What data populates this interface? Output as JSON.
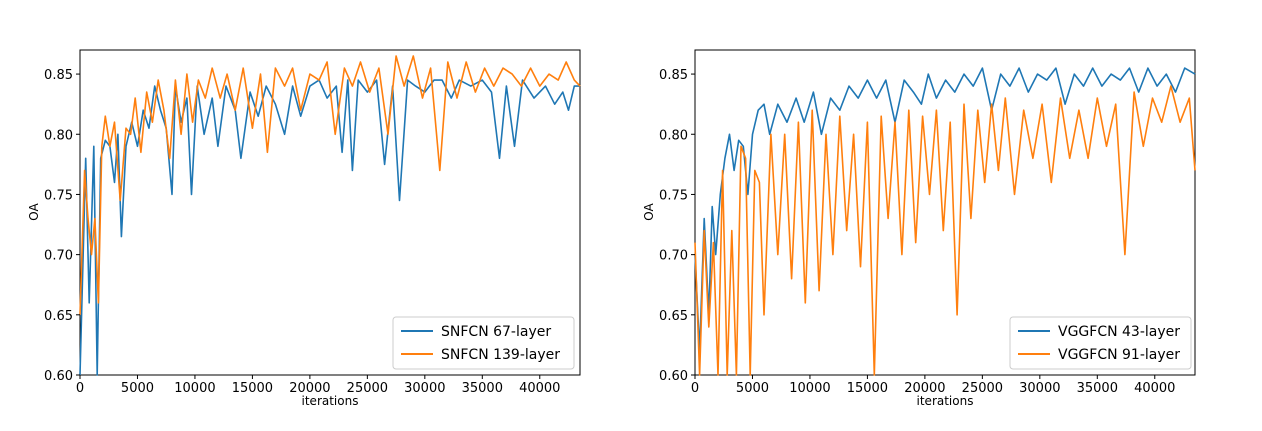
{
  "colors": {
    "blue": "#1f77b4",
    "orange": "#ff7f0e",
    "frame": "#000000",
    "legend_border": "#cccccc"
  },
  "chart_data": [
    {
      "type": "line",
      "title": "",
      "xlabel": "iterations",
      "ylabel": "OA",
      "xlim": [
        0,
        43500
      ],
      "ylim": [
        0.6,
        0.87
      ],
      "grid": false,
      "legend_position": "lower-right",
      "xticks": [
        0,
        5000,
        10000,
        15000,
        20000,
        25000,
        30000,
        35000,
        40000
      ],
      "xtick_labels": [
        "0",
        "5000",
        "10000",
        "15000",
        "20000",
        "25000",
        "30000",
        "35000",
        "40000"
      ],
      "yticks": [
        0.6,
        0.65,
        0.7,
        0.75,
        0.8,
        0.85
      ],
      "ytick_labels": [
        "0.60",
        "0.65",
        "0.70",
        "0.75",
        "0.80",
        "0.85"
      ],
      "series": [
        {
          "name": "SNFCN 67-layer",
          "color": "#1f77b4",
          "x": [
            0,
            500,
            800,
            1200,
            1500,
            1800,
            2200,
            2600,
            3000,
            3300,
            3600,
            4000,
            4500,
            5000,
            5500,
            6000,
            6500,
            7000,
            7500,
            8000,
            8300,
            8800,
            9300,
            9700,
            10200,
            10800,
            11500,
            12000,
            12700,
            13500,
            14000,
            14800,
            15500,
            16200,
            17000,
            17800,
            18500,
            19200,
            20000,
            20800,
            21500,
            22300,
            22800,
            23300,
            23700,
            24200,
            25000,
            25800,
            26500,
            27200,
            27800,
            28500,
            29200,
            30000,
            30800,
            31500,
            32300,
            33000,
            34000,
            35000,
            35800,
            36500,
            37100,
            37800,
            38500,
            39500,
            40500,
            41300,
            42000,
            42500,
            43000,
            43500
          ],
          "y": [
            0.6,
            0.78,
            0.66,
            0.79,
            0.6,
            0.78,
            0.795,
            0.79,
            0.76,
            0.8,
            0.715,
            0.79,
            0.81,
            0.79,
            0.82,
            0.805,
            0.84,
            0.82,
            0.805,
            0.75,
            0.84,
            0.81,
            0.83,
            0.75,
            0.84,
            0.8,
            0.83,
            0.79,
            0.84,
            0.82,
            0.78,
            0.835,
            0.815,
            0.84,
            0.825,
            0.8,
            0.84,
            0.815,
            0.84,
            0.845,
            0.83,
            0.84,
            0.785,
            0.845,
            0.77,
            0.845,
            0.835,
            0.845,
            0.775,
            0.84,
            0.745,
            0.845,
            0.84,
            0.835,
            0.845,
            0.845,
            0.83,
            0.845,
            0.84,
            0.845,
            0.835,
            0.78,
            0.84,
            0.79,
            0.845,
            0.83,
            0.84,
            0.825,
            0.835,
            0.82,
            0.84,
            0.84
          ]
        },
        {
          "name": "SNFCN 139-layer",
          "color": "#ff7f0e",
          "x": [
            0,
            400,
            700,
            1000,
            1300,
            1600,
            1900,
            2200,
            2600,
            3000,
            3500,
            4000,
            4400,
            4800,
            5300,
            5800,
            6300,
            6800,
            7300,
            7800,
            8300,
            8800,
            9300,
            9800,
            10300,
            10900,
            11500,
            12200,
            12800,
            13500,
            14200,
            15000,
            15700,
            16300,
            17000,
            17800,
            18500,
            19200,
            20000,
            20800,
            21500,
            22200,
            23000,
            23700,
            24400,
            25200,
            26000,
            26800,
            27500,
            28200,
            29000,
            29800,
            30500,
            31300,
            32000,
            32800,
            33600,
            34400,
            35200,
            36000,
            36800,
            37600,
            38400,
            39200,
            40000,
            40800,
            41600,
            42300,
            43000,
            43500
          ],
          "y": [
            0.65,
            0.77,
            0.73,
            0.7,
            0.73,
            0.66,
            0.79,
            0.815,
            0.79,
            0.81,
            0.745,
            0.805,
            0.8,
            0.83,
            0.785,
            0.835,
            0.81,
            0.845,
            0.82,
            0.78,
            0.845,
            0.8,
            0.85,
            0.81,
            0.845,
            0.83,
            0.855,
            0.83,
            0.85,
            0.82,
            0.855,
            0.805,
            0.85,
            0.785,
            0.855,
            0.84,
            0.855,
            0.82,
            0.85,
            0.845,
            0.86,
            0.8,
            0.855,
            0.84,
            0.86,
            0.835,
            0.855,
            0.8,
            0.865,
            0.84,
            0.865,
            0.83,
            0.855,
            0.77,
            0.86,
            0.83,
            0.86,
            0.835,
            0.855,
            0.84,
            0.855,
            0.85,
            0.84,
            0.855,
            0.84,
            0.85,
            0.845,
            0.86,
            0.845,
            0.84
          ]
        }
      ]
    },
    {
      "type": "line",
      "title": "",
      "xlabel": "iterations",
      "ylabel": "OA",
      "xlim": [
        0,
        43500
      ],
      "ylim": [
        0.6,
        0.87
      ],
      "grid": false,
      "legend_position": "lower-right",
      "xticks": [
        0,
        5000,
        10000,
        15000,
        20000,
        25000,
        30000,
        35000,
        40000
      ],
      "xtick_labels": [
        "0",
        "5000",
        "10000",
        "15000",
        "20000",
        "25000",
        "30000",
        "35000",
        "40000"
      ],
      "yticks": [
        0.6,
        0.65,
        0.7,
        0.75,
        0.8,
        0.85
      ],
      "ytick_labels": [
        "0.60",
        "0.65",
        "0.70",
        "0.75",
        "0.80",
        "0.85"
      ],
      "series": [
        {
          "name": "VGGFCN 43-layer",
          "color": "#1f77b4",
          "x": [
            0,
            400,
            800,
            1200,
            1500,
            1800,
            2200,
            2600,
            3000,
            3400,
            3800,
            4200,
            4600,
            5000,
            5500,
            6000,
            6500,
            7200,
            8000,
            8800,
            9500,
            10300,
            11000,
            11800,
            12600,
            13400,
            14200,
            15000,
            15800,
            16600,
            17400,
            18200,
            19000,
            19700,
            20300,
            21000,
            21800,
            22600,
            23400,
            24200,
            25000,
            25800,
            26600,
            27400,
            28200,
            29000,
            29800,
            30600,
            31400,
            32200,
            33000,
            33800,
            34600,
            35400,
            36200,
            37000,
            37800,
            38600,
            39400,
            40200,
            41000,
            41800,
            42600,
            43500
          ],
          "y": [
            0.7,
            0.62,
            0.73,
            0.65,
            0.74,
            0.7,
            0.75,
            0.78,
            0.8,
            0.77,
            0.795,
            0.79,
            0.75,
            0.8,
            0.82,
            0.825,
            0.8,
            0.825,
            0.81,
            0.83,
            0.81,
            0.835,
            0.8,
            0.83,
            0.82,
            0.84,
            0.83,
            0.845,
            0.83,
            0.845,
            0.81,
            0.845,
            0.835,
            0.825,
            0.85,
            0.83,
            0.845,
            0.835,
            0.85,
            0.84,
            0.855,
            0.82,
            0.85,
            0.84,
            0.855,
            0.835,
            0.85,
            0.845,
            0.855,
            0.825,
            0.85,
            0.84,
            0.855,
            0.84,
            0.85,
            0.845,
            0.855,
            0.835,
            0.855,
            0.84,
            0.85,
            0.835,
            0.855,
            0.85
          ]
        },
        {
          "name": "VGGFCN 91-layer",
          "color": "#ff7f0e",
          "x": [
            0,
            400,
            800,
            1200,
            1600,
            2000,
            2400,
            2800,
            3200,
            3600,
            4000,
            4400,
            4800,
            5200,
            5600,
            6000,
            6600,
            7200,
            7800,
            8400,
            9000,
            9600,
            10200,
            10800,
            11400,
            12000,
            12600,
            13200,
            13800,
            14400,
            15000,
            15600,
            16200,
            16800,
            17400,
            18000,
            18600,
            19200,
            19800,
            20400,
            21000,
            21600,
            22200,
            22800,
            23400,
            24000,
            24600,
            25200,
            25800,
            26400,
            27000,
            27800,
            28600,
            29400,
            30200,
            31000,
            31800,
            32600,
            33400,
            34200,
            35000,
            35800,
            36600,
            37400,
            38200,
            39000,
            39800,
            40600,
            41400,
            42200,
            43000,
            43500
          ],
          "y": [
            0.71,
            0.6,
            0.72,
            0.64,
            0.71,
            0.6,
            0.77,
            0.6,
            0.72,
            0.6,
            0.79,
            0.78,
            0.6,
            0.77,
            0.76,
            0.65,
            0.8,
            0.7,
            0.8,
            0.68,
            0.81,
            0.66,
            0.82,
            0.67,
            0.8,
            0.7,
            0.815,
            0.72,
            0.8,
            0.69,
            0.81,
            0.6,
            0.815,
            0.73,
            0.81,
            0.7,
            0.82,
            0.71,
            0.815,
            0.75,
            0.82,
            0.72,
            0.81,
            0.65,
            0.825,
            0.73,
            0.82,
            0.76,
            0.825,
            0.77,
            0.83,
            0.75,
            0.82,
            0.78,
            0.825,
            0.76,
            0.83,
            0.78,
            0.82,
            0.78,
            0.83,
            0.79,
            0.825,
            0.7,
            0.835,
            0.79,
            0.83,
            0.81,
            0.84,
            0.81,
            0.83,
            0.77
          ]
        }
      ]
    }
  ]
}
